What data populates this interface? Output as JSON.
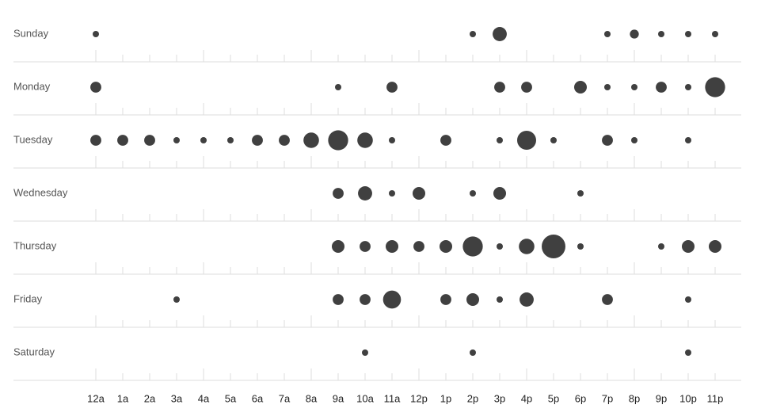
{
  "chart_data": {
    "type": "punchcard",
    "color": "#404040",
    "categories": [
      "12a",
      "1a",
      "2a",
      "3a",
      "4a",
      "5a",
      "6a",
      "7a",
      "8a",
      "9a",
      "10a",
      "11a",
      "12p",
      "1p",
      "2p",
      "3p",
      "4p",
      "5p",
      "6p",
      "7p",
      "8p",
      "9p",
      "10p",
      "11p"
    ],
    "series": [
      {
        "name": "Sunday",
        "values": [
          1,
          null,
          null,
          null,
          null,
          null,
          null,
          null,
          null,
          null,
          null,
          null,
          null,
          null,
          1,
          5,
          null,
          null,
          null,
          1,
          2,
          1,
          1,
          1
        ]
      },
      {
        "name": "Monday",
        "values": [
          3,
          null,
          null,
          null,
          null,
          null,
          null,
          null,
          null,
          1,
          null,
          3,
          null,
          null,
          null,
          3,
          3,
          null,
          4,
          1,
          1,
          3,
          1,
          10
        ]
      },
      {
        "name": "Tuesday",
        "values": [
          3,
          3,
          3,
          1,
          1,
          1,
          3,
          3,
          6,
          10,
          6,
          1,
          null,
          3,
          null,
          1,
          9,
          1,
          null,
          3,
          1,
          null,
          1,
          null
        ]
      },
      {
        "name": "Wednesday",
        "values": [
          null,
          null,
          null,
          null,
          null,
          null,
          null,
          null,
          null,
          3,
          5,
          1,
          4,
          null,
          1,
          4,
          null,
          null,
          1,
          null,
          null,
          null,
          null,
          null
        ]
      },
      {
        "name": "Thursday",
        "values": [
          null,
          null,
          null,
          null,
          null,
          null,
          null,
          null,
          null,
          4,
          3,
          4,
          3,
          4,
          10,
          1,
          6,
          14,
          1,
          null,
          null,
          1,
          4,
          4
        ]
      },
      {
        "name": "Friday",
        "values": [
          null,
          null,
          null,
          1,
          null,
          null,
          null,
          null,
          null,
          3,
          3,
          8,
          null,
          3,
          4,
          1,
          5,
          null,
          null,
          3,
          null,
          null,
          1,
          null
        ]
      },
      {
        "name": "Saturday",
        "values": [
          null,
          null,
          null,
          null,
          null,
          null,
          null,
          null,
          null,
          null,
          1,
          null,
          null,
          null,
          1,
          null,
          null,
          null,
          null,
          null,
          null,
          null,
          1,
          null
        ]
      }
    ]
  }
}
